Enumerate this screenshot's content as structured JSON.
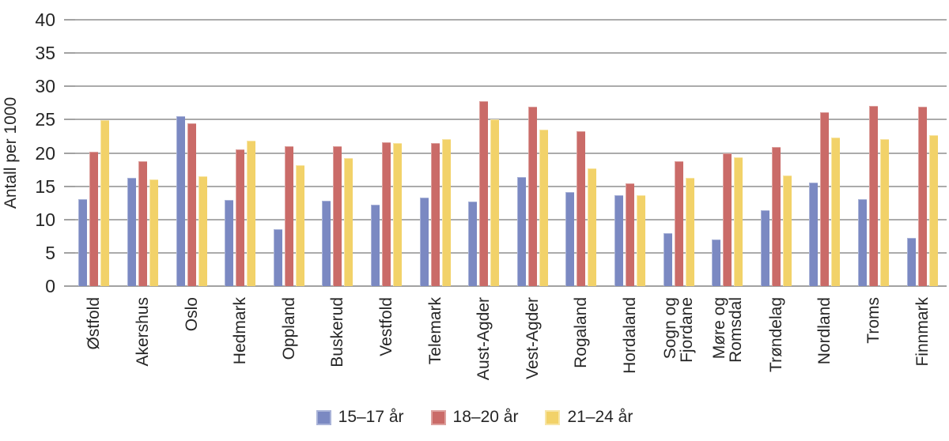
{
  "chart_data": {
    "type": "bar",
    "title": "",
    "xlabel": "",
    "ylabel": "Antall per 1000",
    "ylim": [
      0,
      40
    ],
    "ytick_step": 5,
    "yticks": [
      0,
      5,
      10,
      15,
      20,
      25,
      30,
      35,
      40
    ],
    "grid": true,
    "legend_position": "bottom-center",
    "categories": [
      "Østfold",
      "Akershus",
      "Oslo",
      "Hedmark",
      "Oppland",
      "Buskerud",
      "Vestfold",
      "Telemark",
      "Aust-Agder",
      "Vest-Agder",
      "Rogaland",
      "Hordaland",
      "Sogn og\nFjordane",
      "Møre og\nRomsdal",
      "Trøndelag",
      "Nordland",
      "Troms",
      "Finnmark"
    ],
    "series": [
      {
        "name": "15–17 år",
        "color": "#7b89c2",
        "edge_color": "#a9b3d8",
        "values": [
          13.1,
          16.3,
          25.5,
          12.9,
          8.5,
          12.8,
          12.2,
          13.3,
          12.7,
          16.4,
          14.1,
          13.6,
          8.0,
          7.0,
          11.4,
          15.5,
          13.1,
          7.2
        ]
      },
      {
        "name": "18–20 år",
        "color": "#ca6b68",
        "edge_color": "#dda19e",
        "values": [
          20.2,
          18.8,
          24.5,
          20.5,
          21.0,
          21.0,
          21.6,
          21.5,
          27.8,
          26.9,
          23.3,
          15.4,
          18.8,
          20.0,
          20.9,
          26.1,
          27.1,
          27.0
        ]
      },
      {
        "name": "21–24 år",
        "color": "#f2d269",
        "edge_color": "#f7e5a6",
        "values": [
          24.9,
          16.0,
          16.5,
          21.8,
          18.2,
          19.2,
          21.5,
          22.1,
          25.0,
          23.5,
          17.7,
          13.6,
          16.3,
          19.4,
          16.6,
          22.3,
          22.1,
          22.7
        ]
      }
    ],
    "colors": {
      "grid": "#ababab",
      "axis": "#a2a2a2",
      "text": "#262626",
      "background": "#ffffff"
    }
  }
}
